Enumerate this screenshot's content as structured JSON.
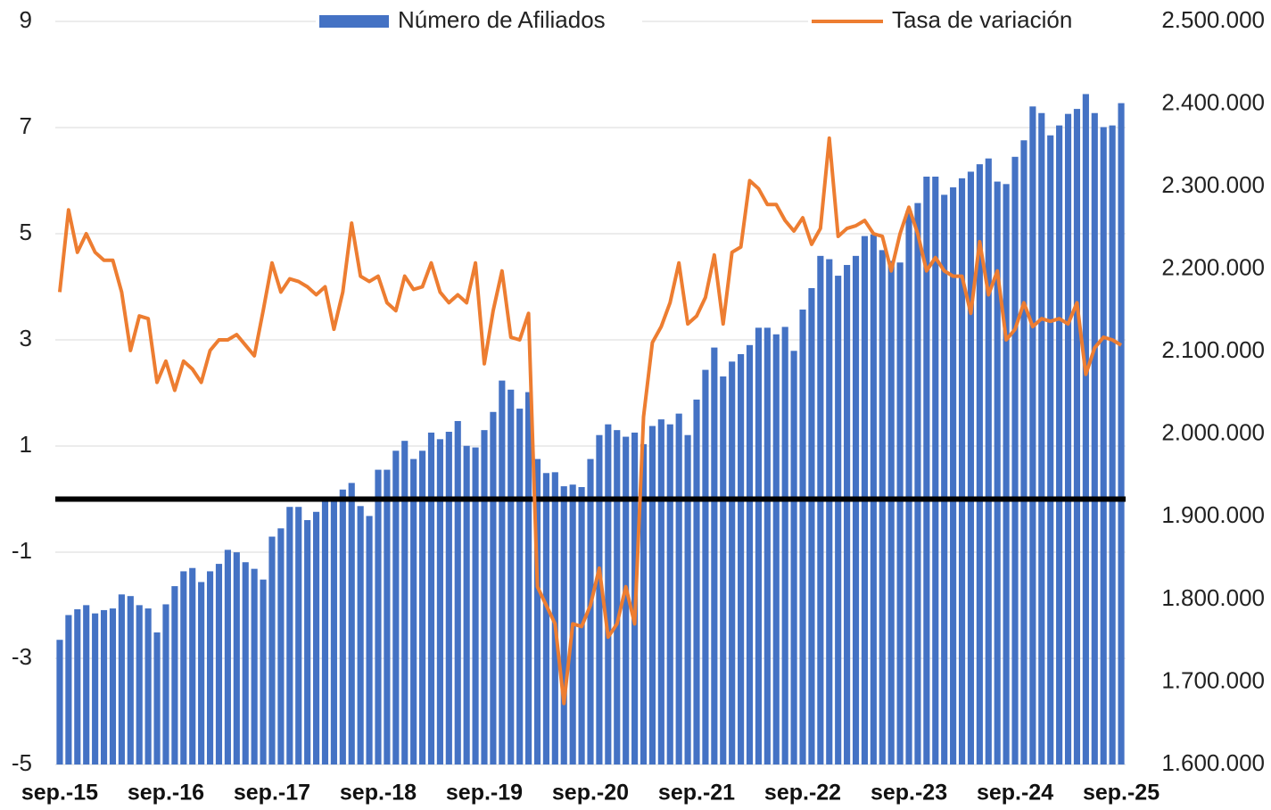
{
  "chart_data": {
    "type": "bar_line",
    "categories": [
      "sep.-15",
      null,
      null,
      null,
      null,
      null,
      null,
      null,
      null,
      null,
      null,
      null,
      "sep.-16",
      null,
      null,
      null,
      null,
      null,
      null,
      null,
      null,
      null,
      null,
      null,
      "sep.-17",
      null,
      null,
      null,
      null,
      null,
      null,
      null,
      null,
      null,
      null,
      null,
      "sep.-18",
      null,
      null,
      null,
      null,
      null,
      null,
      null,
      null,
      null,
      null,
      null,
      "sep.-19",
      null,
      null,
      null,
      null,
      null,
      null,
      null,
      null,
      null,
      null,
      null,
      "sep.-20",
      null,
      null,
      null,
      null,
      null,
      null,
      null,
      null,
      null,
      null,
      null,
      "sep.-21",
      null,
      null,
      null,
      null,
      null,
      null,
      null,
      null,
      null,
      null,
      null,
      "sep.-22",
      null,
      null,
      null,
      null,
      null,
      null,
      null,
      null,
      null,
      null,
      null,
      "sep.-23",
      null,
      null,
      null,
      null,
      null,
      null,
      null,
      null,
      null,
      null,
      null,
      "sep.-24",
      null,
      null,
      null,
      null,
      null,
      null,
      null,
      null,
      null,
      null,
      null,
      "sep.-25"
    ],
    "series": [
      {
        "name": "Número de Afiliados",
        "type": "bar",
        "axis": "y2",
        "color": "#4472c4",
        "values": [
          1751000,
          1781000,
          1788000,
          1793000,
          1783000,
          1787000,
          1789000,
          1806000,
          1804000,
          1793000,
          1789000,
          1760000,
          1794000,
          1816000,
          1834000,
          1838000,
          1821000,
          1834000,
          1843000,
          1860000,
          1857000,
          1845000,
          1837000,
          1824000,
          1876000,
          1886000,
          1912000,
          1912000,
          1896000,
          1906000,
          1919000,
          1921000,
          1933000,
          1941000,
          1913000,
          1901000,
          1957000,
          1957000,
          1980000,
          1992000,
          1970000,
          1980000,
          2002000,
          1994000,
          2003000,
          2016000,
          1986000,
          1984000,
          2005000,
          2027000,
          2065000,
          2054000,
          2031000,
          2051000,
          1970000,
          1953000,
          1954000,
          1937000,
          1939000,
          1936000,
          1970000,
          1999000,
          2012000,
          2005000,
          1997000,
          2002000,
          1988000,
          2010000,
          2018000,
          2012000,
          2025000,
          1999000,
          2042000,
          2078000,
          2105000,
          2070000,
          2088000,
          2097000,
          2108000,
          2129000,
          2129000,
          2121000,
          2130000,
          2101000,
          2151000,
          2177000,
          2216000,
          2212000,
          2192000,
          2205000,
          2216000,
          2240000,
          2242000,
          2223000,
          2210000,
          2208000,
          2271000,
          2280000,
          2312000,
          2312000,
          2290000,
          2299000,
          2310000,
          2318000,
          2327000,
          2334000,
          2306000,
          2303000,
          2336000,
          2356000,
          2397000,
          2389000,
          2362000,
          2374000,
          2388000,
          2394000,
          2412000,
          2389000,
          2372000,
          2374000,
          2401000
        ]
      },
      {
        "name": "Tasa de variación",
        "type": "line",
        "color": "#ed7d31",
        "values": [
          3.9,
          5.45,
          4.65,
          5,
          4.65,
          4.5,
          4.5,
          3.9,
          2.8,
          3.45,
          3.4,
          2.2,
          2.6,
          2.05,
          2.6,
          2.45,
          2.2,
          2.8,
          3,
          3,
          3.1,
          2.9,
          2.7,
          3.55,
          4.45,
          3.9,
          4.15,
          4.1,
          4,
          3.85,
          4,
          3.2,
          3.9,
          5.2,
          4.2,
          4.1,
          4.2,
          3.7,
          3.55,
          4.2,
          3.95,
          4,
          4.45,
          3.9,
          3.7,
          3.85,
          3.7,
          4.45,
          2.55,
          3.55,
          4.3,
          3.05,
          3,
          3.5,
          -1.65,
          -2,
          -2.35,
          -3.85,
          -2.35,
          -2.4,
          -2,
          -1.3,
          -2.6,
          -2.35,
          -1.65,
          -2.35,
          1.55,
          2.95,
          3.25,
          3.7,
          4.45,
          3.3,
          3.45,
          3.8,
          4.6,
          3.3,
          4.65,
          4.75,
          6,
          5.85,
          5.55,
          5.55,
          5.25,
          5.05,
          5.3,
          4.8,
          5.1,
          6.8,
          4.95,
          5.1,
          5.15,
          5.25,
          5,
          4.95,
          4.3,
          5,
          5.5,
          5,
          4.3,
          4.55,
          4.3,
          4.2,
          4.2,
          3.5,
          4.85,
          3.85,
          4.3,
          3,
          3.2,
          3.7,
          3.25,
          3.4,
          3.35,
          3.4,
          3.3,
          3.7,
          2.35,
          2.85,
          3.05,
          3,
          2.9
        ]
      }
    ],
    "ylim": [
      -5,
      9
    ],
    "yticks": [
      -5,
      -3,
      -1,
      1,
      3,
      5,
      7,
      9
    ],
    "y2lim": [
      1600000,
      2500000
    ],
    "y2ticks": [
      {
        "value": 1600000,
        "label": "1.600.000"
      },
      {
        "value": 1700000,
        "label": "1.700.000"
      },
      {
        "value": 1800000,
        "label": "1.800.000"
      },
      {
        "value": 1900000,
        "label": "1.900.000"
      },
      {
        "value": 2000000,
        "label": "2.000.000"
      },
      {
        "value": 2100000,
        "label": "2.100.000"
      },
      {
        "value": 2200000,
        "label": "2.200.000"
      },
      {
        "value": 2300000,
        "label": "2.300.000"
      },
      {
        "value": 2400000,
        "label": "2.400.000"
      },
      {
        "value": 2500000,
        "label": "2.500.000"
      }
    ],
    "grid": true,
    "zero_line": true,
    "legend": "top"
  }
}
